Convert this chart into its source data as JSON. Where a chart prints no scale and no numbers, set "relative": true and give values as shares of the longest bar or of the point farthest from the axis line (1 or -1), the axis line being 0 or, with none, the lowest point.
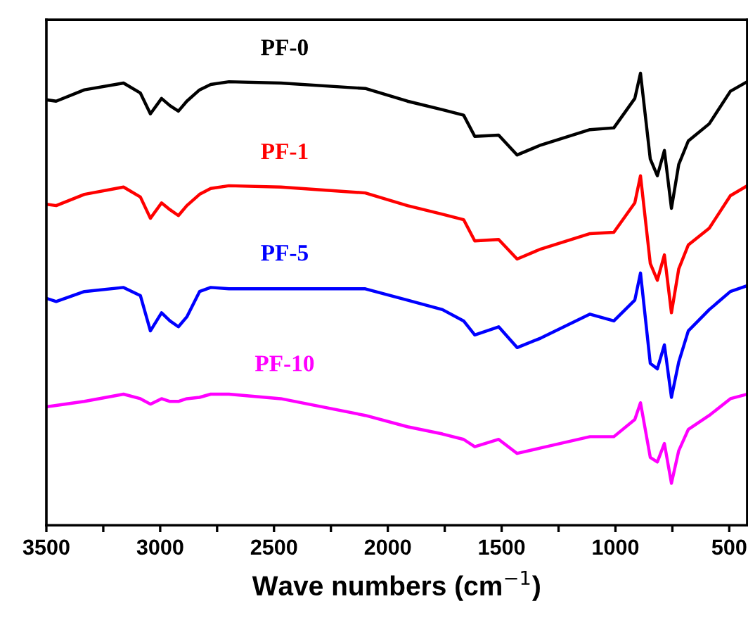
{
  "chart_data": {
    "type": "line",
    "relative": true,
    "xlabel": "Wave numbers (cm$^{−1}$)",
    "x": [
      3500,
      3457,
      3333,
      3161,
      3087,
      3043,
      2994,
      2957,
      2920,
      2883,
      2827,
      2778,
      2698,
      2470,
      2099,
      1914,
      1760,
      1667,
      1618,
      1513,
      1432,
      1328,
      1112,
      1007,
      915,
      890,
      847,
      816,
      785,
      754,
      722,
      680,
      588,
      495,
      421
    ],
    "xlim": [
      3500,
      421
    ],
    "xticks": [
      3500,
      {
        "value": 3250,
        "label": null
      },
      3000,
      {
        "value": 2750,
        "label": null
      },
      2500,
      {
        "value": 2250,
        "label": null
      },
      2000,
      {
        "value": 1750,
        "label": null
      },
      1500,
      {
        "value": 1250,
        "label": null
      },
      1000,
      {
        "value": 750,
        "label": null
      },
      500
    ],
    "tick_labels": "x",
    "grid": false,
    "legend": false,
    "series": [
      {
        "name": "PF-0",
        "color": "#000000",
        "values": [
          0.941,
          0.938,
          0.963,
          0.978,
          0.956,
          0.91,
          0.944,
          0.928,
          0.916,
          0.938,
          0.963,
          0.975,
          0.981,
          0.978,
          0.966,
          0.938,
          0.919,
          0.907,
          0.86,
          0.863,
          0.819,
          0.841,
          0.875,
          0.879,
          0.944,
          1.0,
          0.81,
          0.773,
          0.829,
          0.701,
          0.798,
          0.85,
          0.888,
          0.96,
          0.981
        ]
      },
      {
        "name": "PF-1",
        "color": "#ff0000",
        "values": [
          0.71,
          0.707,
          0.732,
          0.748,
          0.726,
          0.679,
          0.713,
          0.698,
          0.685,
          0.707,
          0.732,
          0.745,
          0.751,
          0.748,
          0.735,
          0.707,
          0.688,
          0.676,
          0.629,
          0.632,
          0.589,
          0.611,
          0.645,
          0.648,
          0.713,
          0.773,
          0.579,
          0.542,
          0.598,
          0.47,
          0.567,
          0.62,
          0.657,
          0.729,
          0.751
        ]
      },
      {
        "name": "PF-5",
        "color": "#0000ff",
        "values": [
          0.502,
          0.495,
          0.517,
          0.526,
          0.508,
          0.43,
          0.47,
          0.452,
          0.439,
          0.461,
          0.517,
          0.526,
          0.523,
          0.523,
          0.523,
          0.498,
          0.477,
          0.452,
          0.421,
          0.439,
          0.393,
          0.414,
          0.467,
          0.452,
          0.498,
          0.558,
          0.358,
          0.346,
          0.399,
          0.283,
          0.361,
          0.43,
          0.477,
          0.517,
          0.53
        ]
      },
      {
        "name": "PF-10",
        "color": "#ff00ff",
        "values": [
          0.262,
          0.265,
          0.274,
          0.29,
          0.28,
          0.268,
          0.28,
          0.274,
          0.274,
          0.28,
          0.283,
          0.29,
          0.29,
          0.28,
          0.243,
          0.218,
          0.202,
          0.19,
          0.174,
          0.19,
          0.159,
          0.171,
          0.196,
          0.196,
          0.234,
          0.271,
          0.15,
          0.14,
          0.181,
          0.093,
          0.165,
          0.212,
          0.243,
          0.28,
          0.29
        ]
      }
    ]
  }
}
